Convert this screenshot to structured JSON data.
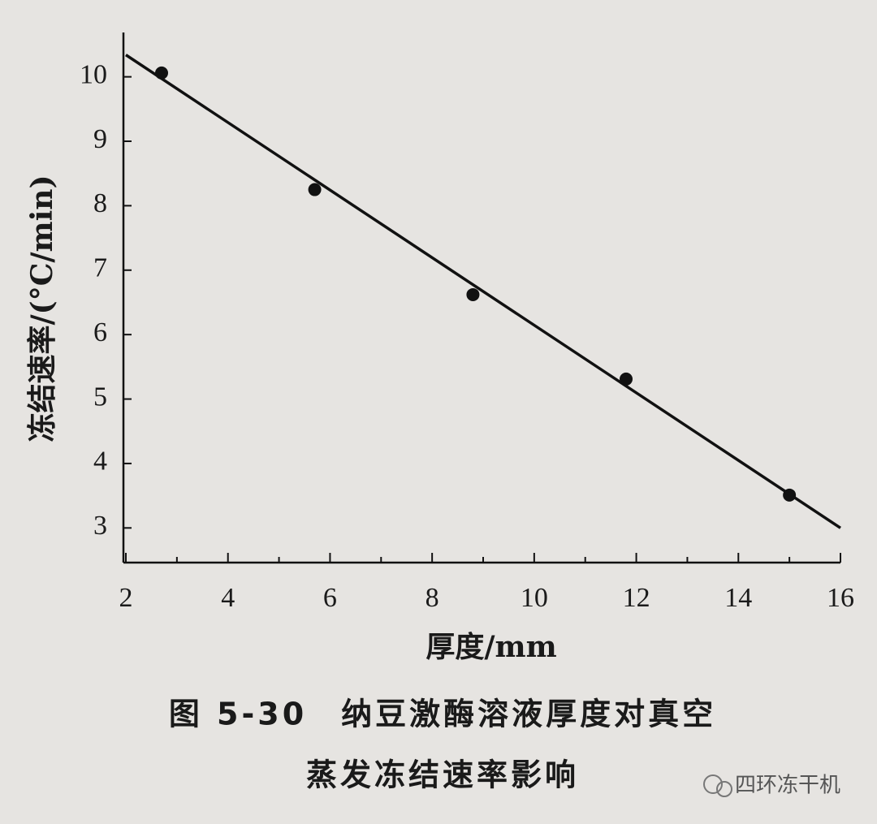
{
  "chart_data": {
    "type": "scatter",
    "title": [
      "图 5-30　纳豆激酶溶液厚度对真空",
      "蒸发冻结速率影响"
    ],
    "x_label": "厚度/mm",
    "y_label": "冻结速率/(°C/min)",
    "xlim": [
      2,
      16
    ],
    "ylim": [
      2.5,
      10.6
    ],
    "xticks": [
      2,
      4,
      6,
      8,
      10,
      12,
      14,
      16
    ],
    "x_minor_ticks": [
      3,
      5,
      7,
      9,
      11,
      13,
      15
    ],
    "yticks": [
      3,
      4,
      5,
      6,
      7,
      8,
      9,
      10
    ],
    "series": [
      {
        "kind": "points",
        "color": "#111111",
        "x": [
          2.7,
          5.7,
          8.8,
          11.8,
          15.0
        ],
        "values": [
          10.06,
          8.25,
          6.62,
          5.31,
          3.51
        ]
      },
      {
        "kind": "line",
        "color": "#111111",
        "x": [
          2,
          16
        ],
        "values": [
          10.34,
          3.0
        ]
      }
    ]
  },
  "watermark": "四环冻干机"
}
